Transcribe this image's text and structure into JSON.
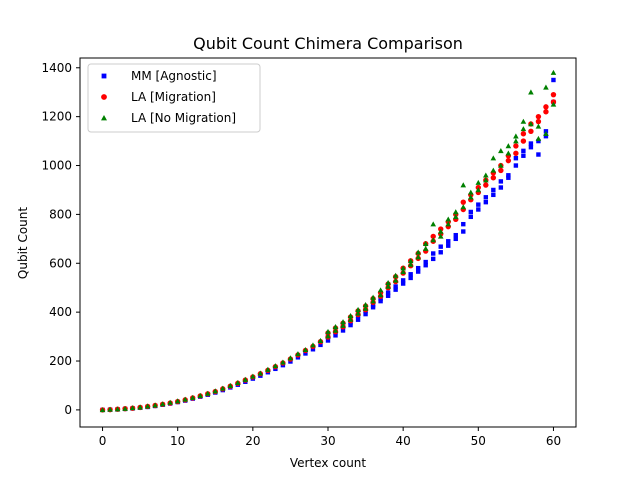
{
  "chart_data": {
    "type": "scatter",
    "title": "Qubit Count Chimera Comparison",
    "xlabel": "Vertex count",
    "ylabel": "Qubit Count",
    "xlim": [
      -3,
      63
    ],
    "ylim": [
      -70,
      1440
    ],
    "xticks": [
      0,
      10,
      20,
      30,
      40,
      50,
      60
    ],
    "yticks": [
      0,
      200,
      400,
      600,
      800,
      1000,
      1200,
      1400
    ],
    "grid": false,
    "legend_position": "top-left",
    "series": [
      {
        "name": "MM [Agnostic]",
        "marker": "square",
        "color": "#0000ff",
        "x": [
          0,
          1,
          2,
          3,
          4,
          5,
          6,
          7,
          8,
          9,
          10,
          11,
          12,
          13,
          14,
          15,
          16,
          17,
          18,
          19,
          20,
          21,
          22,
          23,
          24,
          25,
          26,
          27,
          28,
          29,
          30,
          30,
          31,
          31,
          32,
          32,
          33,
          33,
          34,
          34,
          35,
          35,
          36,
          36,
          37,
          37,
          38,
          38,
          39,
          39,
          40,
          40,
          41,
          41,
          42,
          42,
          43,
          43,
          44,
          44,
          45,
          45,
          46,
          46,
          47,
          47,
          48,
          48,
          49,
          49,
          50,
          50,
          51,
          51,
          52,
          52,
          53,
          53,
          54,
          54,
          55,
          55,
          56,
          56,
          57,
          57,
          58,
          58,
          59,
          59,
          60,
          60
        ],
        "y": [
          0,
          1,
          2,
          4,
          6,
          9,
          12,
          16,
          21,
          26,
          32,
          38,
          46,
          54,
          62,
          71,
          81,
          92,
          103,
          115,
          128,
          140,
          154,
          168,
          183,
          198,
          215,
          231,
          248,
          266,
          284,
          300,
          305,
          318,
          325,
          340,
          347,
          358,
          369,
          385,
          392,
          405,
          420,
          428,
          445,
          455,
          467,
          480,
          492,
          505,
          517,
          530,
          540,
          555,
          566,
          580,
          592,
          605,
          618,
          640,
          645,
          668,
          672,
          690,
          700,
          715,
          730,
          760,
          790,
          810,
          820,
          840,
          850,
          870,
          880,
          900,
          910,
          935,
          950,
          960,
          1000,
          1030,
          1040,
          1060,
          1075,
          1090,
          1100,
          1045,
          1120,
          1140,
          1260,
          1350
        ]
      },
      {
        "name": "LA [Migration]",
        "marker": "circle",
        "color": "#ff0000",
        "x": [
          0,
          1,
          2,
          3,
          4,
          5,
          6,
          7,
          8,
          9,
          10,
          11,
          12,
          13,
          14,
          15,
          16,
          17,
          18,
          19,
          20,
          21,
          22,
          23,
          24,
          25,
          26,
          27,
          28,
          29,
          30,
          30,
          31,
          31,
          32,
          32,
          33,
          33,
          34,
          34,
          35,
          35,
          36,
          36,
          37,
          37,
          38,
          38,
          39,
          39,
          40,
          40,
          41,
          41,
          42,
          42,
          43,
          43,
          44,
          44,
          45,
          45,
          46,
          46,
          47,
          47,
          48,
          48,
          49,
          49,
          50,
          50,
          51,
          51,
          52,
          52,
          53,
          53,
          54,
          54,
          55,
          55,
          56,
          56,
          57,
          57,
          58,
          58,
          59,
          59,
          60,
          60
        ],
        "y": [
          0,
          1,
          3,
          5,
          7,
          10,
          14,
          18,
          23,
          28,
          34,
          41,
          49,
          57,
          66,
          75,
          86,
          97,
          109,
          122,
          135,
          148,
          162,
          177,
          192,
          208,
          225,
          243,
          260,
          279,
          298,
          315,
          320,
          335,
          340,
          355,
          365,
          380,
          390,
          405,
          410,
          425,
          440,
          455,
          465,
          480,
          500,
          515,
          525,
          545,
          560,
          580,
          590,
          610,
          620,
          640,
          650,
          680,
          690,
          710,
          720,
          740,
          750,
          770,
          780,
          800,
          820,
          850,
          860,
          880,
          890,
          910,
          920,
          940,
          950,
          970,
          980,
          1000,
          1020,
          1040,
          1050,
          1080,
          1100,
          1130,
          1140,
          1170,
          1180,
          1200,
          1220,
          1240,
          1260,
          1290
        ]
      },
      {
        "name": "LA [No Migration]",
        "marker": "triangle",
        "color": "#008000",
        "x": [
          0,
          1,
          2,
          3,
          4,
          5,
          6,
          7,
          8,
          9,
          10,
          11,
          12,
          13,
          14,
          15,
          16,
          17,
          18,
          19,
          20,
          21,
          22,
          23,
          24,
          25,
          26,
          27,
          28,
          29,
          30,
          30,
          31,
          31,
          32,
          32,
          33,
          33,
          34,
          34,
          35,
          35,
          36,
          36,
          37,
          37,
          38,
          38,
          39,
          39,
          40,
          40,
          41,
          41,
          42,
          42,
          43,
          43,
          44,
          44,
          45,
          45,
          46,
          46,
          47,
          47,
          48,
          48,
          49,
          49,
          50,
          50,
          51,
          51,
          52,
          52,
          53,
          53,
          54,
          54,
          55,
          55,
          56,
          56,
          57,
          57,
          58,
          58,
          59,
          59,
          60,
          60
        ],
        "y": [
          0,
          2,
          3,
          5,
          8,
          11,
          15,
          19,
          24,
          30,
          36,
          43,
          50,
          58,
          67,
          77,
          88,
          99,
          111,
          124,
          137,
          150,
          165,
          180,
          195,
          212,
          229,
          246,
          265,
          283,
          302,
          320,
          325,
          340,
          345,
          360,
          370,
          385,
          395,
          410,
          415,
          430,
          445,
          460,
          470,
          490,
          505,
          520,
          530,
          550,
          565,
          580,
          595,
          610,
          625,
          645,
          660,
          680,
          695,
          760,
          710,
          730,
          760,
          780,
          790,
          810,
          830,
          920,
          870,
          890,
          900,
          930,
          940,
          960,
          980,
          1030,
          1000,
          1060,
          1050,
          1080,
          1100,
          1120,
          1150,
          1180,
          1170,
          1300,
          1110,
          1160,
          1130,
          1320,
          1250,
          1380
        ]
      }
    ]
  }
}
